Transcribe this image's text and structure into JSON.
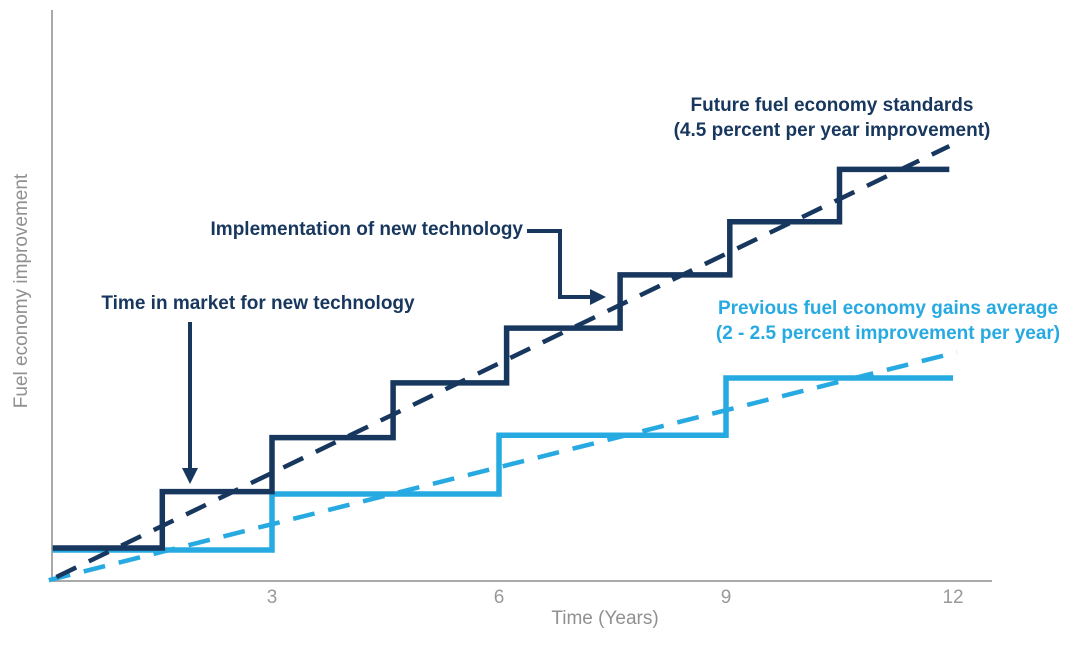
{
  "colors": {
    "navy": "#17375E",
    "light_blue": "#27AAE1",
    "axis_gray": "#A9A9A9",
    "tick_gray": "#999999"
  },
  "axis": {
    "x_label": "Time (Years)",
    "y_label": "Fuel economy improvement",
    "x_tick_labels": [
      "3",
      "6",
      "9",
      "12"
    ]
  },
  "annotations": {
    "future": {
      "line1": "Future fuel economy standards",
      "line2": "(4.5 percent per year improvement)"
    },
    "previous": {
      "line1": "Previous fuel economy gains average",
      "line2": "(2 - 2.5 percent improvement per year)"
    },
    "implementation": "Implementation of new technology",
    "time_in_market": "Time in market for new technology"
  },
  "chart_data": {
    "type": "line",
    "title": "",
    "xlabel": "Time (Years)",
    "ylabel": "Fuel economy improvement",
    "xlim": [
      0,
      12.5
    ],
    "ylim": [
      0,
      62
    ],
    "x_ticks": [
      3,
      6,
      9,
      12
    ],
    "grid": false,
    "legend_position": "inline-annotations",
    "y_units": "cumulative percent fuel economy improvement (estimated, axis unlabeled)",
    "series": [
      {
        "name": "Previous fuel economy gains (stepped implementation)",
        "style": "step-solid",
        "color": "#27AAE1",
        "points": [
          [
            0.1,
            3.85
          ],
          [
            3,
            3.85
          ],
          [
            3,
            10.8
          ],
          [
            6,
            10.8
          ],
          [
            6,
            18.1
          ],
          [
            9,
            18.1
          ],
          [
            9,
            25.2
          ],
          [
            12,
            25.2
          ]
        ]
      },
      {
        "name": "Previous fuel economy gains average trend (2 - 2.5 percent per year)",
        "style": "dashed",
        "color": "#27AAE1",
        "points": [
          [
            0.05,
            0.1
          ],
          [
            12.05,
            28.4
          ]
        ]
      },
      {
        "name": "Future fuel economy standards (stepped implementation)",
        "style": "step-solid",
        "color": "#17375E",
        "points": [
          [
            0.1,
            4.1
          ],
          [
            1.55,
            4.1
          ],
          [
            1.55,
            11.1
          ],
          [
            3,
            11.1
          ],
          [
            3,
            17.8
          ],
          [
            4.6,
            17.8
          ],
          [
            4.6,
            24.6
          ],
          [
            6.1,
            24.6
          ],
          [
            6.1,
            31.4
          ],
          [
            7.6,
            31.4
          ],
          [
            7.6,
            38
          ],
          [
            9.05,
            38
          ],
          [
            9.05,
            44.6
          ],
          [
            10.5,
            44.6
          ],
          [
            10.5,
            51.1
          ],
          [
            11.95,
            51.1
          ]
        ]
      },
      {
        "name": "Future fuel economy standards trend (4.5 percent per year)",
        "style": "dashed",
        "color": "#17375E",
        "points": [
          [
            0.15,
            0.5
          ],
          [
            11.95,
            54
          ]
        ]
      }
    ]
  }
}
